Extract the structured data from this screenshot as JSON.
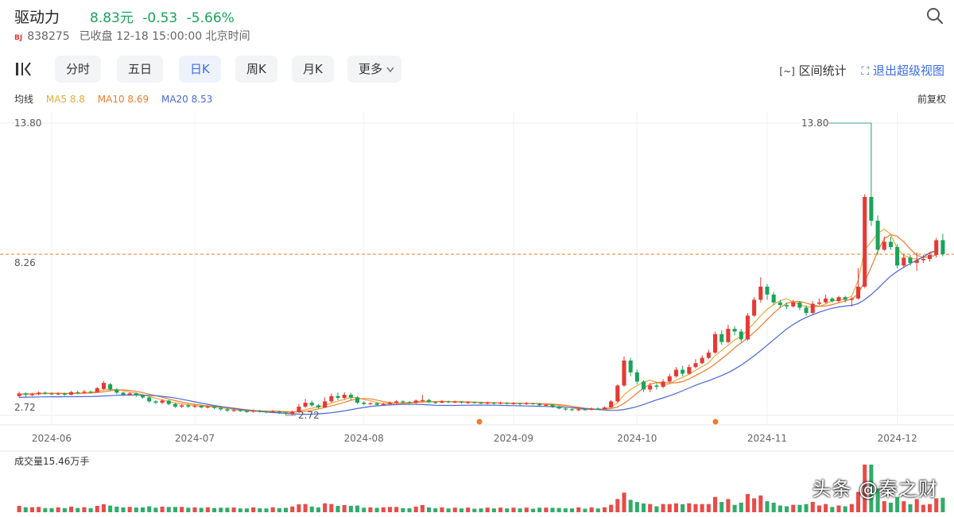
{
  "stock": {
    "name": "驱动力",
    "price": "8.83元",
    "change": "-0.53",
    "change_pct": "-5.66%",
    "market": "BJ",
    "code": "838275",
    "status": "已收盘 12-18 15:00:00 北京时间"
  },
  "tabs": [
    "分时",
    "五日",
    "日K",
    "周K",
    "月K",
    "更多"
  ],
  "active_tab": "日K",
  "right_links": {
    "interval": "区间统计",
    "exit": "退出超级视图"
  },
  "ma_legend": {
    "title": "均线",
    "ma5": "MA5 8.8",
    "ma10": "MA10 8.69",
    "ma20": "MA20 8.53"
  },
  "adjust": "前复权",
  "volume_label": "成交量15.46万手",
  "watermark": "头条 @秦之财",
  "colors": {
    "up": "#e53935",
    "down": "#1aa35a",
    "ma5": "#e8a93a",
    "ma10": "#f07b2c",
    "ma20": "#4a67d6",
    "accent": "#3b6de6"
  },
  "chart_data": {
    "type": "candlestick",
    "y_ticks": [
      "13.80",
      "8.26",
      "2.72"
    ],
    "ylim": [
      2.72,
      13.8
    ],
    "x_ticks": [
      "2024-06",
      "2024-07",
      "2024-08",
      "2024-09",
      "2024-10",
      "2024-11",
      "2024-12"
    ],
    "annotations": {
      "high": "13.80",
      "low": "2.72"
    },
    "last_close": 8.83,
    "candles": [
      [
        3.45,
        3.55,
        3.4,
        3.62
      ],
      [
        3.55,
        3.5,
        3.42,
        3.6
      ],
      [
        3.5,
        3.52,
        3.45,
        3.58
      ],
      [
        3.52,
        3.58,
        3.48,
        3.63
      ],
      [
        3.58,
        3.55,
        3.5,
        3.62
      ],
      [
        3.55,
        3.52,
        3.48,
        3.6
      ],
      [
        3.52,
        3.55,
        3.48,
        3.6
      ],
      [
        3.55,
        3.5,
        3.46,
        3.58
      ],
      [
        3.5,
        3.6,
        3.48,
        3.65
      ],
      [
        3.6,
        3.58,
        3.52,
        3.65
      ],
      [
        3.58,
        3.62,
        3.55,
        3.68
      ],
      [
        3.62,
        3.6,
        3.55,
        3.66
      ],
      [
        3.6,
        3.75,
        3.58,
        3.8
      ],
      [
        3.72,
        3.95,
        3.68,
        4.02
      ],
      [
        3.9,
        3.7,
        3.65,
        3.95
      ],
      [
        3.7,
        3.58,
        3.52,
        3.75
      ],
      [
        3.58,
        3.5,
        3.45,
        3.62
      ],
      [
        3.5,
        3.55,
        3.45,
        3.6
      ],
      [
        3.55,
        3.48,
        3.42,
        3.58
      ],
      [
        3.48,
        3.4,
        3.35,
        3.52
      ],
      [
        3.4,
        3.25,
        3.2,
        3.45
      ],
      [
        3.25,
        3.2,
        3.15,
        3.3
      ],
      [
        3.2,
        3.28,
        3.15,
        3.32
      ],
      [
        3.28,
        3.15,
        3.1,
        3.3
      ],
      [
        3.15,
        3.05,
        3.0,
        3.2
      ],
      [
        3.05,
        3.1,
        3.0,
        3.15
      ],
      [
        3.1,
        3.05,
        3.0,
        3.15
      ],
      [
        3.05,
        3.08,
        3.0,
        3.12
      ],
      [
        3.08,
        3.02,
        2.98,
        3.12
      ],
      [
        3.02,
        3.05,
        2.98,
        3.1
      ],
      [
        3.05,
        3.0,
        2.95,
        3.08
      ],
      [
        3.0,
        2.95,
        2.9,
        3.05
      ],
      [
        2.95,
        2.9,
        2.85,
        3.0
      ],
      [
        2.9,
        2.92,
        2.85,
        2.96
      ],
      [
        2.92,
        2.88,
        2.85,
        2.95
      ],
      [
        2.88,
        2.86,
        2.82,
        2.92
      ],
      [
        2.86,
        2.9,
        2.82,
        2.94
      ],
      [
        2.9,
        2.87,
        2.82,
        2.93
      ],
      [
        2.87,
        2.85,
        2.8,
        2.9
      ],
      [
        2.85,
        2.88,
        2.8,
        2.92
      ],
      [
        2.88,
        2.83,
        2.78,
        2.9
      ],
      [
        2.83,
        2.78,
        2.72,
        2.86
      ],
      [
        2.78,
        2.85,
        2.72,
        2.9
      ],
      [
        2.85,
        3.05,
        2.82,
        3.15
      ],
      [
        3.05,
        3.2,
        3.0,
        3.35
      ],
      [
        3.2,
        3.1,
        3.05,
        3.28
      ],
      [
        3.1,
        3.02,
        2.98,
        3.15
      ],
      [
        3.02,
        3.25,
        3.0,
        3.4
      ],
      [
        3.25,
        3.45,
        3.2,
        3.55
      ],
      [
        3.45,
        3.38,
        3.3,
        3.58
      ],
      [
        3.38,
        3.5,
        3.32,
        3.6
      ],
      [
        3.5,
        3.4,
        3.3,
        3.58
      ],
      [
        3.4,
        3.2,
        3.15,
        3.45
      ],
      [
        3.2,
        3.15,
        3.1,
        3.25
      ],
      [
        3.15,
        3.18,
        3.1,
        3.22
      ],
      [
        3.18,
        3.12,
        3.08,
        3.22
      ],
      [
        3.12,
        3.15,
        3.08,
        3.2
      ],
      [
        3.15,
        3.2,
        3.1,
        3.25
      ],
      [
        3.2,
        3.25,
        3.15,
        3.3
      ],
      [
        3.25,
        3.22,
        3.18,
        3.3
      ],
      [
        3.22,
        3.2,
        3.15,
        3.26
      ],
      [
        3.2,
        3.28,
        3.15,
        3.32
      ],
      [
        3.28,
        3.3,
        3.22,
        3.5
      ],
      [
        3.3,
        3.22,
        3.18,
        3.35
      ],
      [
        3.22,
        3.2,
        3.15,
        3.26
      ],
      [
        3.2,
        3.25,
        3.18,
        3.3
      ],
      [
        3.25,
        3.22,
        3.18,
        3.28
      ],
      [
        3.22,
        3.24,
        3.18,
        3.28
      ],
      [
        3.24,
        3.2,
        3.16,
        3.26
      ],
      [
        3.2,
        3.22,
        3.16,
        3.26
      ],
      [
        3.22,
        3.2,
        3.17,
        3.25
      ],
      [
        3.2,
        3.18,
        3.14,
        3.24
      ],
      [
        3.18,
        3.2,
        3.14,
        3.24
      ],
      [
        3.2,
        3.17,
        3.13,
        3.23
      ],
      [
        3.17,
        3.2,
        3.14,
        3.24
      ],
      [
        3.2,
        3.16,
        3.12,
        3.22
      ],
      [
        3.16,
        3.18,
        3.12,
        3.22
      ],
      [
        3.18,
        3.15,
        3.1,
        3.2
      ],
      [
        3.15,
        3.18,
        3.12,
        3.22
      ],
      [
        3.18,
        3.16,
        3.12,
        3.2
      ],
      [
        3.16,
        3.1,
        3.05,
        3.2
      ],
      [
        3.1,
        3.12,
        3.05,
        3.15
      ],
      [
        3.12,
        3.05,
        3.0,
        3.14
      ],
      [
        3.05,
        2.98,
        2.95,
        3.08
      ],
      [
        2.98,
        2.95,
        2.9,
        3.0
      ],
      [
        2.95,
        2.92,
        2.88,
        2.98
      ],
      [
        2.92,
        2.95,
        2.88,
        3.0
      ],
      [
        2.95,
        2.93,
        2.9,
        2.98
      ],
      [
        2.93,
        2.98,
        2.9,
        3.02
      ],
      [
        2.98,
        2.96,
        2.92,
        3.02
      ],
      [
        2.96,
        3.02,
        2.94,
        3.06
      ],
      [
        3.02,
        3.25,
        3.0,
        3.3
      ],
      [
        3.25,
        3.85,
        3.2,
        3.9
      ],
      [
        3.85,
        4.8,
        3.8,
        4.95
      ],
      [
        4.8,
        4.35,
        4.2,
        4.9
      ],
      [
        4.35,
        4.0,
        3.9,
        4.45
      ],
      [
        4.0,
        3.7,
        3.6,
        4.05
      ],
      [
        3.7,
        3.85,
        3.6,
        3.95
      ],
      [
        3.85,
        3.8,
        3.7,
        3.95
      ],
      [
        3.8,
        4.0,
        3.75,
        4.1
      ],
      [
        4.0,
        4.2,
        3.95,
        4.3
      ],
      [
        4.2,
        4.45,
        4.15,
        4.55
      ],
      [
        4.45,
        4.3,
        4.2,
        4.6
      ],
      [
        4.3,
        4.55,
        4.25,
        4.65
      ],
      [
        4.55,
        4.7,
        4.5,
        4.85
      ],
      [
        4.7,
        4.9,
        4.65,
        5.0
      ],
      [
        4.9,
        5.1,
        4.85,
        5.2
      ],
      [
        5.1,
        5.8,
        5.05,
        5.9
      ],
      [
        5.8,
        5.5,
        5.4,
        5.95
      ],
      [
        5.5,
        6.0,
        5.45,
        6.15
      ],
      [
        6.0,
        5.9,
        5.75,
        6.1
      ],
      [
        5.9,
        5.6,
        5.5,
        6.0
      ],
      [
        5.6,
        6.5,
        5.55,
        6.6
      ],
      [
        6.5,
        7.1,
        6.45,
        7.2
      ],
      [
        7.1,
        7.6,
        7.0,
        7.95
      ],
      [
        7.6,
        7.3,
        7.1,
        7.7
      ],
      [
        7.3,
        7.0,
        6.9,
        7.4
      ],
      [
        7.0,
        6.9,
        6.8,
        7.1
      ],
      [
        6.9,
        6.85,
        6.75,
        7.0
      ],
      [
        6.85,
        7.0,
        6.8,
        7.1
      ],
      [
        7.0,
        6.8,
        6.7,
        7.05
      ],
      [
        6.8,
        6.6,
        6.5,
        6.9
      ],
      [
        6.6,
        6.95,
        6.55,
        7.05
      ],
      [
        6.95,
        7.0,
        6.9,
        7.15
      ],
      [
        7.0,
        7.15,
        6.95,
        7.3
      ],
      [
        7.15,
        7.05,
        7.0,
        7.2
      ],
      [
        7.05,
        7.2,
        7.0,
        7.25
      ],
      [
        7.2,
        7.1,
        7.0,
        7.25
      ],
      [
        7.1,
        7.15,
        6.85,
        7.2
      ],
      [
        7.15,
        7.6,
        7.1,
        8.3
      ],
      [
        7.6,
        11.0,
        7.55,
        11.1
      ],
      [
        11.0,
        10.1,
        9.9,
        13.8
      ],
      [
        10.1,
        9.0,
        8.8,
        10.3
      ],
      [
        9.0,
        9.3,
        8.95,
        9.5
      ],
      [
        9.3,
        9.1,
        9.0,
        9.5
      ],
      [
        9.1,
        8.4,
        8.3,
        9.2
      ],
      [
        8.4,
        8.7,
        8.3,
        8.85
      ],
      [
        8.7,
        8.5,
        8.4,
        8.8
      ],
      [
        8.5,
        8.6,
        8.2,
        8.9
      ],
      [
        8.6,
        8.65,
        8.5,
        8.8
      ],
      [
        8.65,
        8.8,
        8.55,
        8.9
      ],
      [
        8.8,
        9.36,
        8.7,
        9.45
      ],
      [
        9.36,
        8.83,
        8.75,
        9.6
      ]
    ],
    "ma5": [
      3.52,
      3.54,
      3.54,
      3.55,
      3.56,
      3.56,
      3.55,
      3.55,
      3.55,
      3.56,
      3.57,
      3.58,
      3.63,
      3.68,
      3.7,
      3.7,
      3.66,
      3.6,
      3.56,
      3.5,
      3.44,
      3.37,
      3.31,
      3.24,
      3.19,
      3.16,
      3.12,
      3.09,
      3.06,
      3.05,
      3.04,
      3.01,
      2.98,
      2.94,
      2.91,
      2.89,
      2.88,
      2.88,
      2.87,
      2.87,
      2.86,
      2.84,
      2.83,
      2.88,
      2.94,
      2.99,
      3.04,
      3.1,
      3.18,
      3.26,
      3.32,
      3.4,
      3.39,
      3.32,
      3.27,
      3.21,
      3.16,
      3.16,
      3.18,
      3.2,
      3.21,
      3.23,
      3.25,
      3.25,
      3.24,
      3.25,
      3.24,
      3.23,
      3.22,
      3.22,
      3.21,
      3.2,
      3.19,
      3.19,
      3.18,
      3.18,
      3.17,
      3.17,
      3.17,
      3.17,
      3.15,
      3.14,
      3.12,
      3.09,
      3.04,
      3.0,
      2.97,
      2.94,
      2.95,
      2.95,
      2.97,
      3.03,
      3.2,
      3.5,
      3.7,
      3.85,
      3.98,
      4.05,
      3.98,
      3.87,
      3.91,
      4.06,
      4.16,
      4.28,
      4.43,
      4.57,
      4.71,
      4.98,
      5.18,
      5.38,
      5.58,
      5.72,
      5.96,
      6.22,
      6.5,
      6.74,
      6.92,
      7.07,
      7.14,
      7.01,
      6.93,
      6.83,
      6.83,
      6.85,
      6.94,
      7.06,
      7.09,
      7.14,
      7.24,
      7.84,
      9.0,
      9.3,
      9.62,
      9.78,
      9.58,
      9.04,
      8.78,
      8.7,
      8.64,
      8.7,
      8.9,
      8.95
    ]
  }
}
